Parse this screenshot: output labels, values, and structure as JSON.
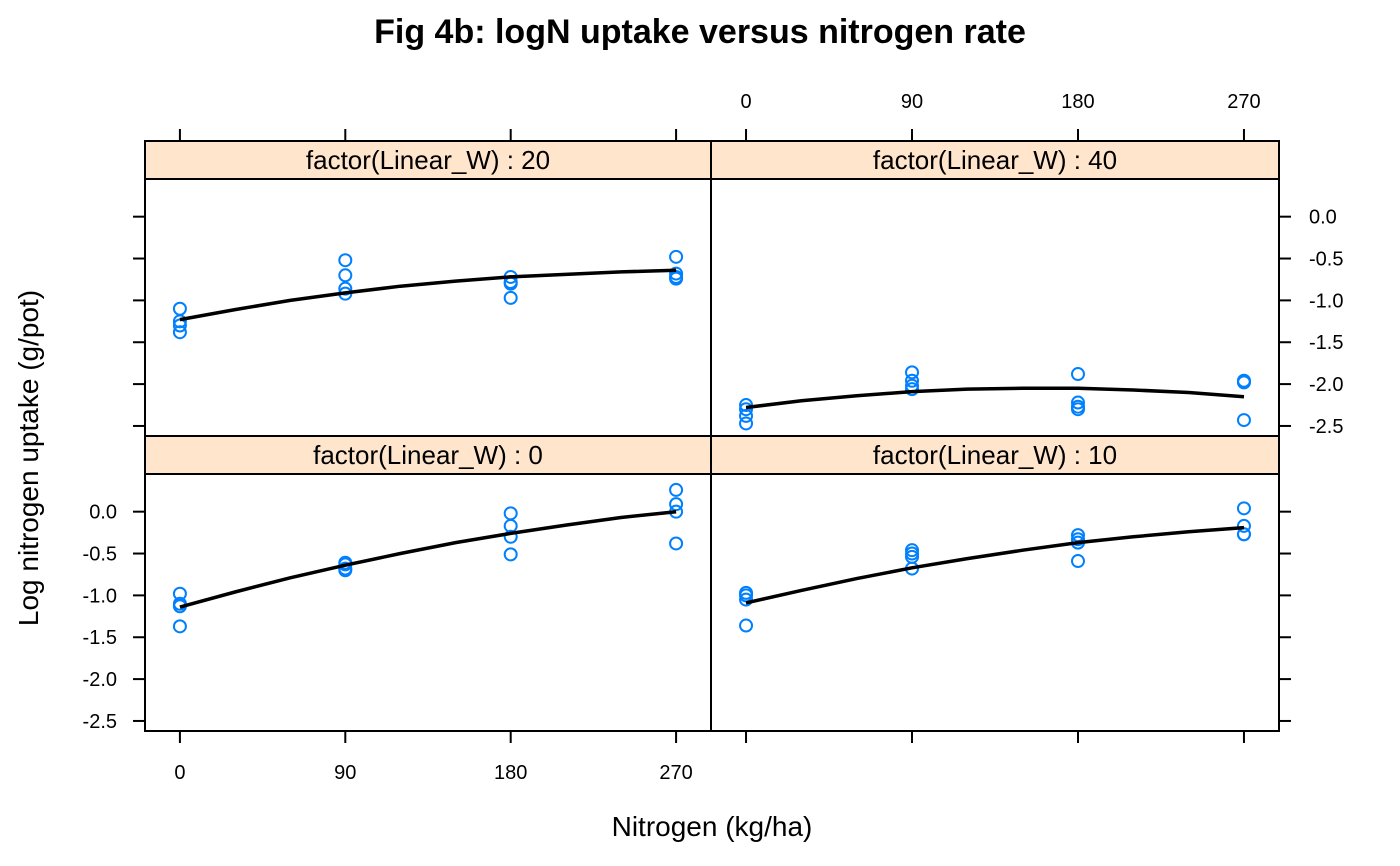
{
  "colors": {
    "strip": "#ffe5cc",
    "points": "#0080ff",
    "fit": "#000000"
  },
  "chart_data": {
    "type": "scatter",
    "title": "Fig 4b: logN uptake versus nitrogen rate",
    "xlabel": "Nitrogen (kg/ha)",
    "ylabel": "Log nitrogen uptake (g/pot)",
    "x_ticks": [
      0,
      90,
      180,
      270
    ],
    "y_ticks": [
      "0.0",
      "-0.5",
      "-1.0",
      "-1.5",
      "-2.0",
      "-2.5"
    ],
    "xlim": [
      -19,
      289
    ],
    "ylim": [
      -2.62,
      0.45
    ],
    "grid": false,
    "panels": [
      {
        "strip": "factor(Linear_W) : 20",
        "points": [
          {
            "x": 0,
            "y": -1.1
          },
          {
            "x": 0,
            "y": -1.25
          },
          {
            "x": 0,
            "y": -1.3
          },
          {
            "x": 0,
            "y": -1.38
          },
          {
            "x": 90,
            "y": -0.52
          },
          {
            "x": 90,
            "y": -0.7
          },
          {
            "x": 90,
            "y": -0.86
          },
          {
            "x": 90,
            "y": -0.92
          },
          {
            "x": 180,
            "y": -0.72
          },
          {
            "x": 180,
            "y": -0.78
          },
          {
            "x": 180,
            "y": -0.8
          },
          {
            "x": 180,
            "y": -0.97
          },
          {
            "x": 270,
            "y": -0.48
          },
          {
            "x": 270,
            "y": -0.68
          },
          {
            "x": 270,
            "y": -0.72
          },
          {
            "x": 270,
            "y": -0.74
          }
        ],
        "fit": {
          "x": [
            0,
            30,
            60,
            90,
            120,
            150,
            180,
            210,
            240,
            270
          ],
          "y": [
            -1.23,
            -1.11,
            -1.0,
            -0.91,
            -0.83,
            -0.77,
            -0.72,
            -0.69,
            -0.66,
            -0.64
          ]
        }
      },
      {
        "strip": "factor(Linear_W) : 40",
        "points": [
          {
            "x": 0,
            "y": -2.25
          },
          {
            "x": 0,
            "y": -2.3
          },
          {
            "x": 0,
            "y": -2.38
          },
          {
            "x": 0,
            "y": -2.47
          },
          {
            "x": 90,
            "y": -1.86
          },
          {
            "x": 90,
            "y": -1.96
          },
          {
            "x": 90,
            "y": -2.02
          },
          {
            "x": 90,
            "y": -2.06
          },
          {
            "x": 180,
            "y": -1.88
          },
          {
            "x": 180,
            "y": -2.22
          },
          {
            "x": 180,
            "y": -2.27
          },
          {
            "x": 180,
            "y": -2.3
          },
          {
            "x": 270,
            "y": -1.96
          },
          {
            "x": 270,
            "y": -1.97
          },
          {
            "x": 270,
            "y": -1.98
          },
          {
            "x": 270,
            "y": -2.43
          }
        ],
        "fit": {
          "x": [
            0,
            30,
            60,
            90,
            120,
            150,
            180,
            210,
            240,
            270
          ],
          "y": [
            -2.28,
            -2.2,
            -2.14,
            -2.09,
            -2.06,
            -2.05,
            -2.05,
            -2.07,
            -2.1,
            -2.15
          ]
        }
      },
      {
        "strip": "factor(Linear_W) : 0",
        "points": [
          {
            "x": 0,
            "y": -0.98
          },
          {
            "x": 0,
            "y": -1.1
          },
          {
            "x": 0,
            "y": -1.13
          },
          {
            "x": 0,
            "y": -1.37
          },
          {
            "x": 90,
            "y": -0.61
          },
          {
            "x": 90,
            "y": -0.63
          },
          {
            "x": 90,
            "y": -0.68
          },
          {
            "x": 90,
            "y": -0.7
          },
          {
            "x": 180,
            "y": -0.02
          },
          {
            "x": 180,
            "y": -0.17
          },
          {
            "x": 180,
            "y": -0.3
          },
          {
            "x": 180,
            "y": -0.51
          },
          {
            "x": 270,
            "y": 0.26
          },
          {
            "x": 270,
            "y": 0.09
          },
          {
            "x": 270,
            "y": 0.0
          },
          {
            "x": 270,
            "y": -0.38
          }
        ],
        "fit": {
          "x": [
            0,
            30,
            60,
            90,
            120,
            150,
            180,
            210,
            240,
            270
          ],
          "y": [
            -1.14,
            -0.96,
            -0.79,
            -0.64,
            -0.5,
            -0.37,
            -0.26,
            -0.16,
            -0.07,
            0.0
          ]
        }
      },
      {
        "strip": "factor(Linear_W) : 10",
        "points": [
          {
            "x": 0,
            "y": -0.97
          },
          {
            "x": 0,
            "y": -1.0
          },
          {
            "x": 0,
            "y": -1.05
          },
          {
            "x": 0,
            "y": -1.36
          },
          {
            "x": 90,
            "y": -0.46
          },
          {
            "x": 90,
            "y": -0.5
          },
          {
            "x": 90,
            "y": -0.54
          },
          {
            "x": 90,
            "y": -0.68
          },
          {
            "x": 180,
            "y": -0.28
          },
          {
            "x": 180,
            "y": -0.33
          },
          {
            "x": 180,
            "y": -0.37
          },
          {
            "x": 180,
            "y": -0.59
          },
          {
            "x": 270,
            "y": 0.04
          },
          {
            "x": 270,
            "y": -0.17
          },
          {
            "x": 270,
            "y": -0.27
          },
          {
            "x": 270,
            "y": -0.27
          }
        ],
        "fit": {
          "x": [
            0,
            30,
            60,
            90,
            120,
            150,
            180,
            210,
            240,
            270
          ],
          "y": [
            -1.09,
            -0.94,
            -0.8,
            -0.67,
            -0.56,
            -0.46,
            -0.37,
            -0.3,
            -0.24,
            -0.19
          ]
        }
      }
    ]
  }
}
